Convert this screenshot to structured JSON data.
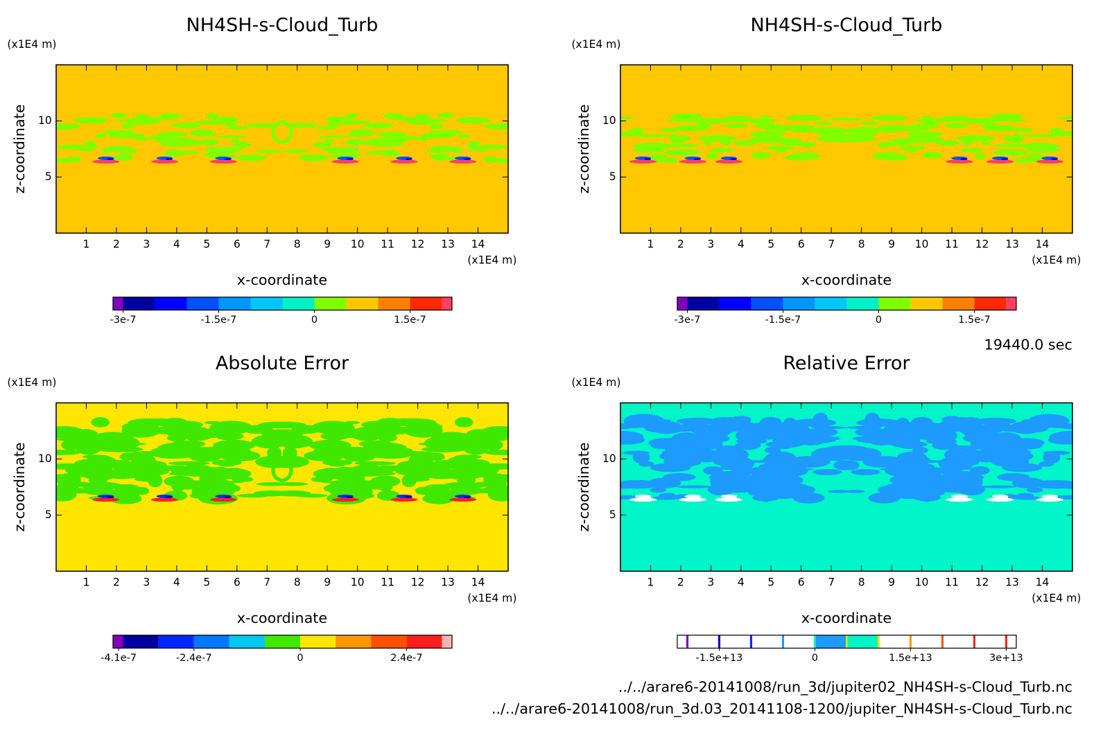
{
  "chart_data": [
    {
      "type": "contour",
      "title": "NH4SH-s-Cloud_Turb",
      "xlabel": "x-coordinate",
      "ylabel": "z-coordinate",
      "x_unit": "(x1E4 m)",
      "y_unit": "(x1E4 m)",
      "xlim": [
        0,
        15
      ],
      "ylim": [
        0,
        15
      ],
      "xticks": [
        1,
        2,
        3,
        4,
        5,
        6,
        7,
        8,
        9,
        10,
        11,
        12,
        13,
        14
      ],
      "yticks": [
        5,
        10
      ],
      "colorbar": {
        "levels": [
          -3e-07,
          -2.5e-07,
          -2e-07,
          -1.5e-07,
          -1e-07,
          -5e-08,
          0,
          5e-08,
          1e-07,
          1.5e-07,
          2e-07
        ],
        "colors": [
          "#8000c0",
          "#0000a0",
          "#0000ff",
          "#0050ff",
          "#0096ff",
          "#00c8ff",
          "#00f0c8",
          "#80ff00",
          "#ffc800",
          "#ff8000",
          "#ff2800",
          "#ff4060",
          "#ffb4b4"
        ],
        "ticks": [
          {
            "value": -3e-07,
            "label": "-3e-7"
          },
          {
            "value": -1.5e-07,
            "label": "-1.5e-7"
          },
          0,
          {
            "value": 1.5e-07,
            "label": "1.5e-7"
          }
        ]
      }
    },
    {
      "type": "contour",
      "title": "NH4SH-s-Cloud_Turb",
      "xlabel": "x-coordinate",
      "ylabel": "z-coordinate",
      "x_unit": "(x1E4 m)",
      "y_unit": "(x1E4 m)",
      "xlim": [
        0,
        15
      ],
      "ylim": [
        0,
        15
      ],
      "xticks": [
        1,
        2,
        3,
        4,
        5,
        6,
        7,
        8,
        9,
        10,
        11,
        12,
        13,
        14
      ],
      "yticks": [
        5,
        10
      ],
      "colorbar": {
        "levels": [
          -3e-07,
          -2.5e-07,
          -2e-07,
          -1.5e-07,
          -1e-07,
          -5e-08,
          0,
          5e-08,
          1e-07,
          1.5e-07,
          2e-07
        ],
        "colors": [
          "#8000c0",
          "#0000a0",
          "#0000ff",
          "#0050ff",
          "#0096ff",
          "#00c8ff",
          "#00f0c8",
          "#80ff00",
          "#ffc800",
          "#ff8000",
          "#ff2800",
          "#ff4060",
          "#ffb4b4"
        ],
        "ticks": [
          {
            "value": -3e-07,
            "label": "-3e-7"
          },
          {
            "value": -1.5e-07,
            "label": "-1.5e-7"
          },
          0,
          {
            "value": 1.5e-07,
            "label": "1.5e-7"
          }
        ]
      }
    },
    {
      "type": "contour",
      "title": "Absolute Error",
      "xlabel": "x-coordinate",
      "ylabel": "z-coordinate",
      "x_unit": "(x1E4 m)",
      "y_unit": "(x1E4 m)",
      "xlim": [
        0,
        15
      ],
      "ylim": [
        0,
        15
      ],
      "xticks": [
        1,
        2,
        3,
        4,
        5,
        6,
        7,
        8,
        9,
        10,
        11,
        12,
        13,
        14
      ],
      "yticks": [
        5,
        10
      ],
      "colorbar": {
        "levels": [
          -4e-07,
          -3.2e-07,
          -2.4e-07,
          -1.6e-07,
          -8e-08,
          0,
          8e-08,
          1.6e-07,
          2.4e-07,
          3.2e-07
        ],
        "colors": [
          "#8000c0",
          "#0000a0",
          "#0028ff",
          "#0078ff",
          "#00c8f0",
          "#40e800",
          "#ffe600",
          "#ff9600",
          "#ff5000",
          "#ff1e1e",
          "#ffb4b4"
        ],
        "ticks": [
          {
            "value": -4.1e-07,
            "label": "-4.1e-7"
          },
          {
            "value": -2.4e-07,
            "label": "-2.4e-7"
          },
          0,
          {
            "value": 2.4e-07,
            "label": "2.4e-7"
          }
        ]
      }
    },
    {
      "type": "contour",
      "title": "Relative Error",
      "xlabel": "x-coordinate",
      "ylabel": "z-coordinate",
      "x_unit": "(x1E4 m)",
      "y_unit": "(x1E4 m)",
      "xlim": [
        0,
        15
      ],
      "ylim": [
        0,
        15
      ],
      "xticks": [
        1,
        2,
        3,
        4,
        5,
        6,
        7,
        8,
        9,
        10,
        11,
        12,
        13,
        14
      ],
      "yticks": [
        5,
        10
      ],
      "colorbar": {
        "levels": [
          -20000000000000.0,
          -15000000000000.0,
          -10000000000000.0,
          -5000000000000.0,
          0,
          5000000000000.0,
          10000000000000.0,
          15000000000000.0,
          20000000000000.0,
          25000000000000.0,
          30000000000000.0
        ],
        "colors": [
          "#ffffff",
          "#ffffff",
          "#ffffff",
          "#ffffff",
          "#ffffff",
          "#1e9bff",
          "#00f5c8",
          "#ffffff",
          "#ffffff",
          "#ffffff",
          "#ffffff",
          "#ffffff"
        ],
        "line_colors": [
          "#8000c0",
          "#0000c8",
          "#0028ff",
          "#1e9bff",
          "#00f5c8",
          "#b4f000",
          "#ffdc00",
          "#ff9600",
          "#ff5000",
          "#ff1e1e",
          "#ff1e1e"
        ],
        "ticks": [
          {
            "value": -15000000000000.0,
            "label": "-1.5e+13"
          },
          0,
          {
            "value": 15000000000000.0,
            "label": "1.5e+13"
          },
          {
            "value": 30000000000000.0,
            "label": "3e+13"
          }
        ]
      }
    }
  ],
  "time_label": "19440.0 sec",
  "files": [
    "../../arare6-20141008/run_3d/jupiter02_NH4SH-s-Cloud_Turb.nc",
    "../../arare6-20141008/run_3d.03_20141108-1200/jupiter_NH4SH-s-Cloud_Turb.nc"
  ]
}
